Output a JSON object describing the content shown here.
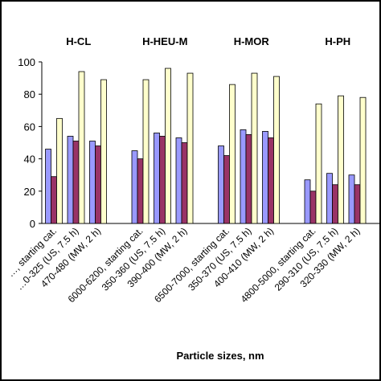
{
  "chart_data": {
    "type": "bar",
    "group_labels": [
      "H-CL",
      "H-HEU-M",
      "H-MOR",
      "H-PH"
    ],
    "groups": [
      {
        "label": "H-CL",
        "categories": [
          "…, starting cat.",
          "…0-325 (US, 7.5 h)",
          "470-480 (MW, 2 h)"
        ],
        "values": [
          [
            46,
            29,
            65
          ],
          [
            54,
            51,
            94
          ],
          [
            51,
            48,
            89
          ]
        ]
      },
      {
        "label": "H-HEU-M",
        "categories": [
          "6000-6200, starting cat.",
          "350-360 (US, 7.5 h)",
          "390-400 (MW, 2 h)"
        ],
        "values": [
          [
            45,
            40,
            89
          ],
          [
            56,
            54,
            96
          ],
          [
            53,
            50,
            93
          ]
        ]
      },
      {
        "label": "H-MOR",
        "categories": [
          "6500-7000, starting cat.",
          "350-370 (US, 7.5 h)",
          "400-410 (MW, 2 h)"
        ],
        "values": [
          [
            48,
            42,
            86
          ],
          [
            58,
            55,
            93
          ],
          [
            57,
            53,
            91
          ]
        ]
      },
      {
        "label": "H-PH",
        "categories": [
          "4800-5000, starting cat.",
          "290-310 (US, 7.5 h)",
          "320-330 (MW, 2 h)"
        ],
        "values": [
          [
            27,
            20,
            74
          ],
          [
            31,
            24,
            79
          ],
          [
            30,
            24,
            78
          ]
        ]
      }
    ],
    "series_colors": [
      "#9999ff",
      "#993366",
      "#ffffcc",
      "#000000"
    ],
    "y_ticks": [
      "0",
      "20",
      "40",
      "60",
      "80",
      "100"
    ],
    "ylim": [
      0,
      100
    ],
    "xlabel": "Particle sizes, nm",
    "grid": false
  }
}
